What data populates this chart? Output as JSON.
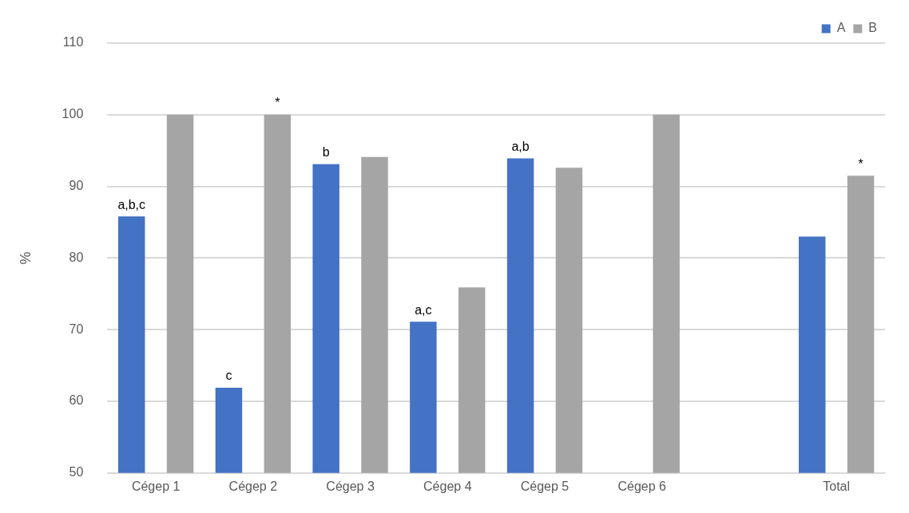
{
  "chart_data": {
    "type": "bar",
    "ylabel": "%",
    "categories": [
      "Cégep 1",
      "Cégep 2",
      "Cégep 3",
      "Cégep 4",
      "Cégep 5",
      "Cégep 6",
      null,
      "Total"
    ],
    "series": [
      {
        "name": "A",
        "color": "#4472c4",
        "values": [
          85.8,
          61.9,
          93.1,
          71.1,
          93.9,
          null,
          null,
          83.0
        ],
        "value_labels": [
          "a,b,c",
          "c",
          "b",
          "a,c",
          "a,b",
          null,
          null,
          null
        ]
      },
      {
        "name": "B",
        "color": "#a5a5a5",
        "values": [
          100,
          100,
          94.1,
          75.9,
          92.6,
          100,
          null,
          91.5
        ],
        "value_labels": [
          null,
          "*",
          null,
          null,
          null,
          null,
          null,
          "*"
        ]
      }
    ],
    "ylim": [
      50,
      110
    ],
    "yticks": [
      50,
      60,
      70,
      80,
      90,
      100,
      110
    ],
    "grid": "y",
    "legend": "top right"
  }
}
